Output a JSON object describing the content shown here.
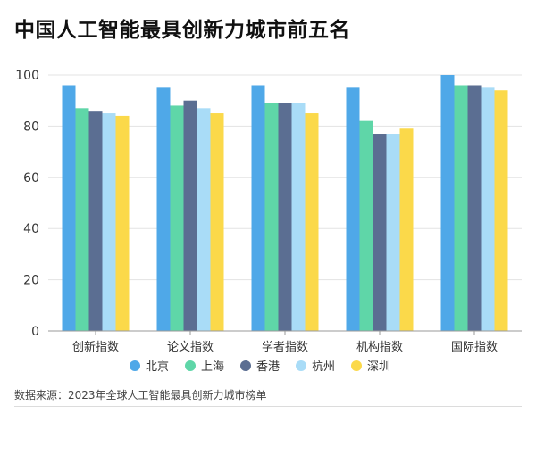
{
  "title": "中国人工智能最具创新力城市前五名",
  "source_note": "数据来源：2023年全球人工智能最具创新力城市榜单",
  "colors": {
    "grid": "#e3e3e3",
    "axis": "#9a9a9a",
    "text": "#333333"
  },
  "chart_data": {
    "type": "bar",
    "title": "中国人工智能最具创新力城市前五名",
    "xlabel": "",
    "ylabel": "",
    "ylim": [
      0,
      100
    ],
    "yticks": [
      "0",
      "20",
      "40",
      "60",
      "80",
      "100"
    ],
    "grid": true,
    "legend_position": "bottom",
    "categories": [
      "创新指数",
      "论文指数",
      "学者指数",
      "机构指数",
      "国际指数"
    ],
    "series": [
      {
        "name": "北京",
        "color": "#4fa8e8",
        "values": [
          96,
          95,
          96,
          95,
          100
        ]
      },
      {
        "name": "上海",
        "color": "#5fd6a8",
        "values": [
          87,
          88,
          89,
          82,
          96
        ]
      },
      {
        "name": "香港",
        "color": "#5b6e92",
        "values": [
          86,
          90,
          89,
          77,
          96
        ]
      },
      {
        "name": "杭州",
        "color": "#a9dcf7",
        "values": [
          85,
          87,
          89,
          77,
          95
        ]
      },
      {
        "name": "深圳",
        "color": "#fbd94a",
        "values": [
          84,
          85,
          85,
          79,
          94
        ]
      }
    ]
  }
}
